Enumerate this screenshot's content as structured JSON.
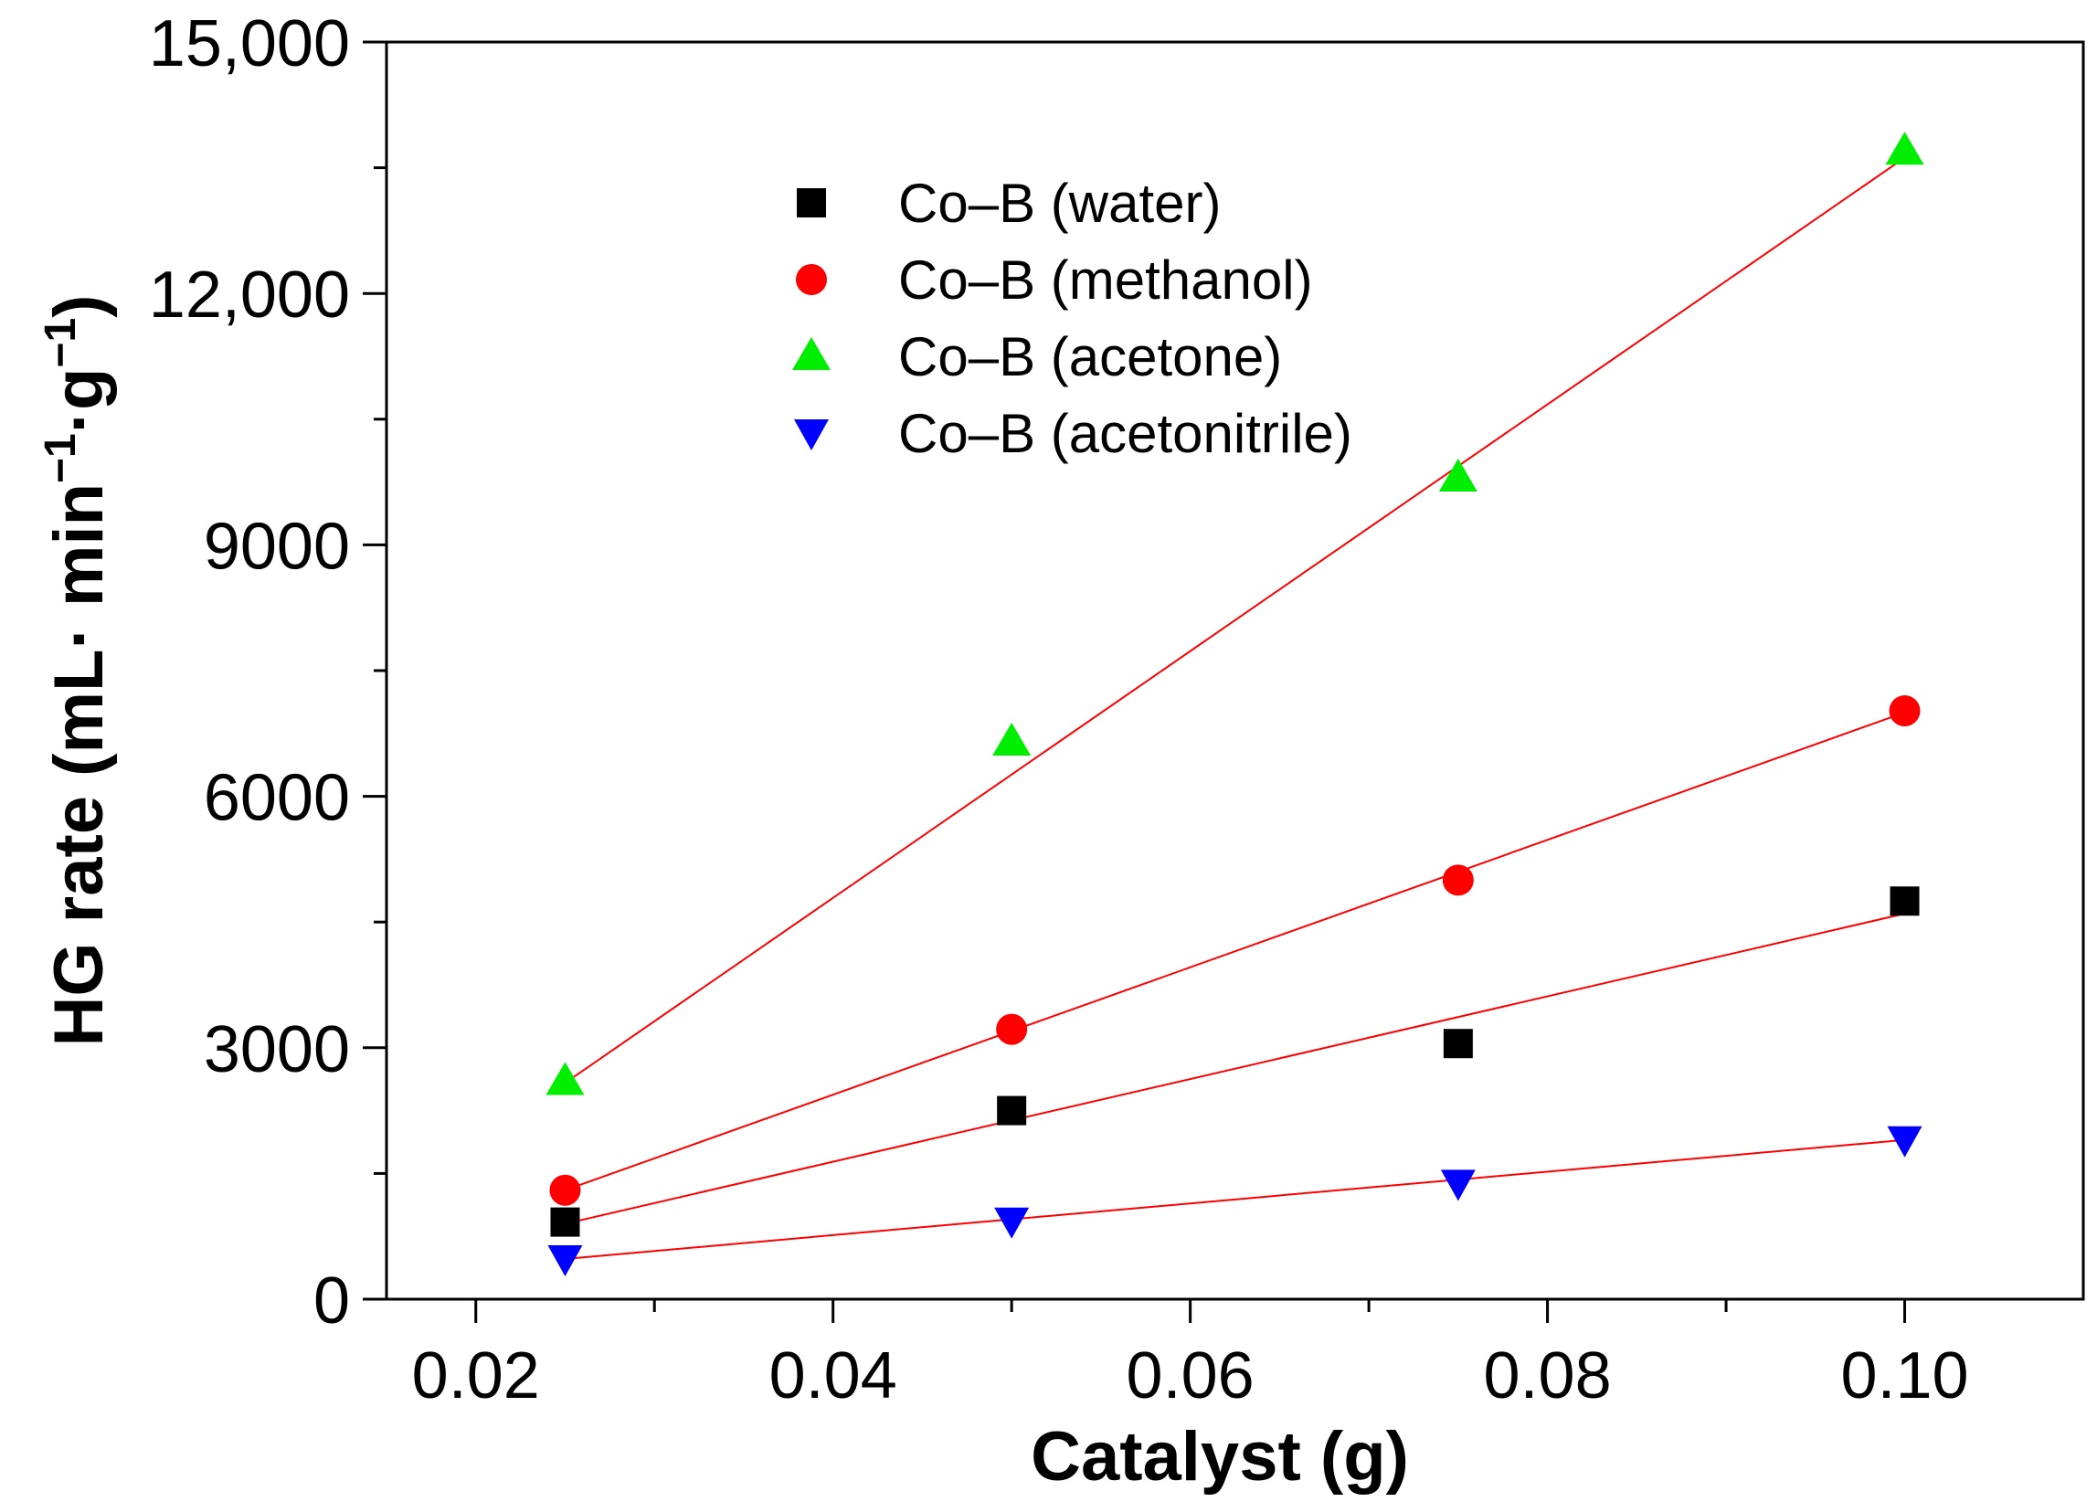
{
  "chart_data": {
    "type": "scatter",
    "title": "",
    "xlabel": "Catalyst (g)",
    "ylabel_parts": [
      "HG rate (mL· min",
      "−1",
      "·g",
      "−1",
      ")"
    ],
    "xlim": [
      0.015,
      0.11
    ],
    "ylim": [
      0,
      15000
    ],
    "xticks": [
      0.02,
      0.04,
      0.06,
      0.08,
      0.1
    ],
    "xtick_labels": [
      "0.02",
      "0.04",
      "0.06",
      "0.08",
      "0.10"
    ],
    "x_minor_ticks": [
      0.03,
      0.05,
      0.07,
      0.09
    ],
    "yticks": [
      0,
      3000,
      6000,
      9000,
      12000,
      15000
    ],
    "ytick_labels": [
      "0",
      "3000",
      "6000",
      "9000",
      "12,000",
      "15,000"
    ],
    "y_minor_step": 1500,
    "grid": false,
    "legend_position": "top-center",
    "fit_line_color": "#ff0000",
    "series": [
      {
        "name": "Co–B (water)",
        "marker": "square",
        "color": "#000000",
        "x": [
          0.025,
          0.05,
          0.075,
          0.1
        ],
        "y": [
          920,
          2250,
          3050,
          4750
        ],
        "fit": [
          [
            0.025,
            900
          ],
          [
            0.1,
            4600
          ]
        ]
      },
      {
        "name": "Co–B (methanol)",
        "marker": "circle",
        "color": "#ff0000",
        "x": [
          0.025,
          0.05,
          0.075,
          0.1
        ],
        "y": [
          1300,
          3220,
          5000,
          7020
        ],
        "fit": [
          [
            0.025,
            1300
          ],
          [
            0.1,
            7000
          ]
        ]
      },
      {
        "name": "Co–B (acetone)",
        "marker": "triangle-up",
        "color": "#00ee00",
        "x": [
          0.025,
          0.05,
          0.075,
          0.1
        ],
        "y": [
          2600,
          6650,
          9800,
          13700
        ],
        "fit": [
          [
            0.025,
            2580
          ],
          [
            0.1,
            13620
          ]
        ]
      },
      {
        "name": "Co–B (acetonitrile)",
        "marker": "triangle-down",
        "color": "#0000ff",
        "x": [
          0.025,
          0.05,
          0.075,
          0.1
        ],
        "y": [
          480,
          930,
          1380,
          1900
        ],
        "fit": [
          [
            0.025,
            480
          ],
          [
            0.1,
            1900
          ]
        ]
      }
    ]
  }
}
